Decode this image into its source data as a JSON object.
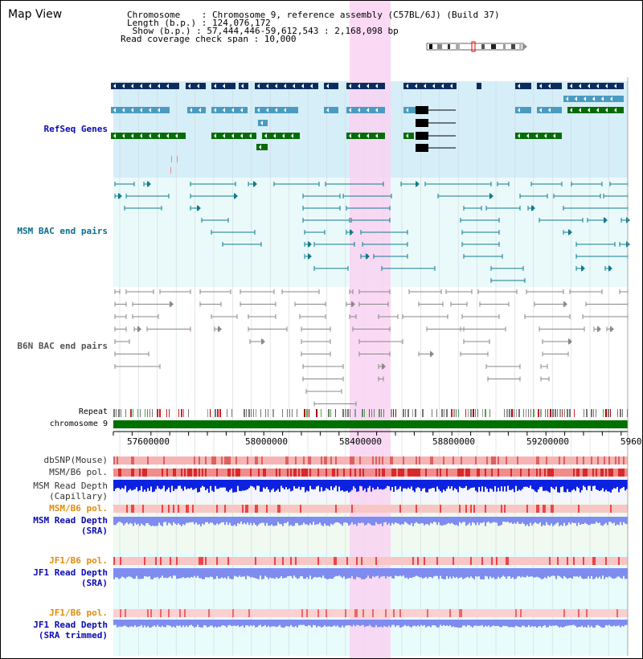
{
  "title": "Map View",
  "info": {
    "chromosome": "Chromosome    : Chromosome 9, reference assembly (C57BL/6J) (Build 37)",
    "length": "Length (b.p.) : 124,076,172",
    "show": " Show (b.p.) : 57,444,446-59,612,543 : 2,168,098 bp",
    "span": "Read coverage check span : 10,000"
  },
  "tracks": {
    "refseq": "RefSeq Genes",
    "msm_bac": "MSM BAC end pairs",
    "b6n_bac": "B6N BAC end pairs",
    "repeat": "Repeat",
    "chromosome": "chromosome 9",
    "dbsnp": "dbSNP(Mouse)",
    "msm_b6_pol_1": "MSM/B6 pol.",
    "msm_depth_cap_1": "MSM Read Depth",
    "msm_depth_cap_2": "(Capillary)",
    "msm_b6_pol_2": "MSM/B6 pol.",
    "msm_depth_sra_1": "MSM Read Depth",
    "msm_depth_sra_2": "(SRA)",
    "jf1_b6_pol_1": "JF1/B6 pol.",
    "jf1_depth_sra_1": "JF1 Read Depth",
    "jf1_depth_sra_2": "(SRA)",
    "jf1_b6_pol_2": "JF1/B6 pol.",
    "jf1_depth_trim_1": "JF1 Read Depth",
    "jf1_depth_trim_2": "(SRA trimmed)"
  },
  "ruler": {
    "ticks": [
      "57600000",
      "58000000",
      "58400000",
      "58800000",
      "59200000",
      "5960"
    ]
  },
  "colors": {
    "refseq_bg": "#d6eef8",
    "bac_bg": "#eafafa",
    "highlight": "#f9d2f2",
    "dark_blue": "#0d2c5e",
    "mid_blue": "#4a9bc2",
    "green": "#086b08",
    "teal": "#117a8c",
    "grey": "#888888",
    "pol": "#f4a6a6",
    "depth_cap": "#0d22e0",
    "depth_sra": "#7e8cf0",
    "label_blue": "#0a0ab4",
    "label_teal": "#086e8a",
    "label_orange": "#e38c0c"
  }
}
